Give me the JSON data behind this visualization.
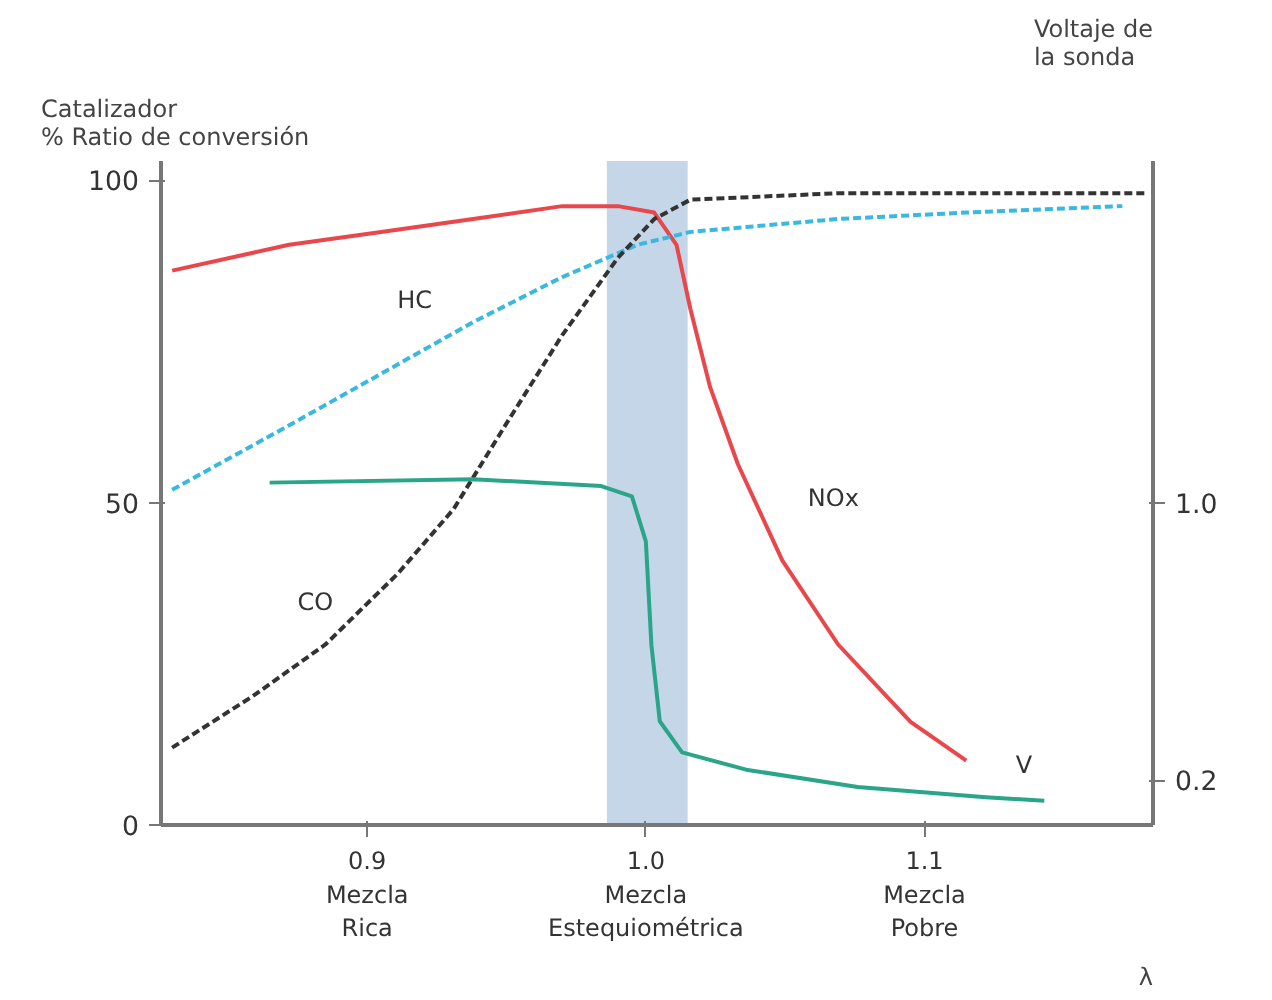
{
  "chart_data": {
    "type": "line",
    "ylabel": "Catalizador\n% Ratio de conversión",
    "y2label": "Voltaje de\nla sonda",
    "xlabel": "λ",
    "xlim": [
      0.826,
      1.182
    ],
    "xticks": [
      {
        "value": 0.9,
        "label": "0.9\nMezcla\nRica"
      },
      {
        "value": 1.0,
        "label": "1.0\nMezcla\nEstequiométrica"
      },
      {
        "value": 1.1,
        "label": "1.1\nMezcla\nPobre"
      }
    ],
    "ylim": [
      0,
      103
    ],
    "yticks": [
      0,
      50,
      100
    ],
    "y2lim": [
      0.07,
      1.99
    ],
    "y2ticks": [
      0.2,
      {
        "value": 1.0,
        "label": "1.0"
      }
    ],
    "grid": false,
    "marker": "none",
    "bands": [
      {
        "axis": "x",
        "from": 0.986,
        "to": 1.015,
        "color": "#b8cce4"
      }
    ],
    "series": [
      {
        "name": "NOx",
        "color": "#e8474c",
        "line_style": "solid",
        "x": [
          0.83,
          0.872,
          0.905,
          0.938,
          0.97,
          0.99,
          1.003,
          1.011,
          1.016,
          1.023,
          1.033,
          1.049,
          1.069,
          1.095,
          1.115
        ],
        "values": [
          86,
          90,
          92,
          94,
          96,
          96,
          95,
          90,
          80,
          68,
          56,
          41,
          28,
          16,
          10
        ]
      },
      {
        "name": "HC",
        "color": "#3bb8e0",
        "line_style": "dashed",
        "x": [
          0.83,
          0.872,
          0.905,
          0.938,
          0.97,
          0.997,
          1.016,
          1.069,
          1.115,
          1.171
        ],
        "values": [
          52,
          62,
          70,
          78,
          85,
          90,
          92,
          94,
          95,
          96
        ]
      },
      {
        "name": "CO",
        "color": "#333333",
        "line_style": "dashed",
        "x": [
          0.83,
          0.859,
          0.885,
          0.911,
          0.931,
          0.951,
          0.97,
          0.99,
          1.003,
          1.016,
          1.069,
          1.179
        ],
        "values": [
          12,
          20,
          28,
          39,
          49,
          63,
          76,
          88,
          94,
          97,
          98,
          98
        ]
      },
      {
        "name": "V",
        "color": "#2aa58a",
        "line_style": "solid",
        "axis": "y2",
        "x": [
          0.865,
          0.938,
          0.984,
          0.995,
          1.0,
          1.002,
          1.005,
          1.013,
          1.036,
          1.076,
          1.122,
          1.143
        ],
        "values": [
          1.06,
          1.07,
          1.05,
          1.02,
          0.89,
          0.59,
          0.37,
          0.28,
          0.23,
          0.18,
          0.15,
          0.14
        ]
      }
    ]
  }
}
